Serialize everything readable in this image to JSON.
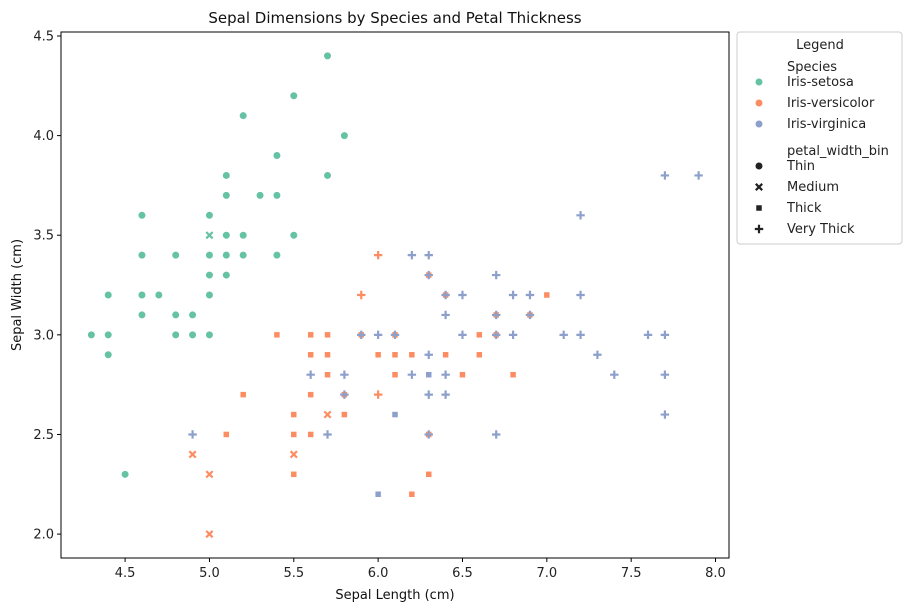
{
  "chart_data": {
    "type": "scatter",
    "title": "Sepal Dimensions by Species and Petal Thickness",
    "xlabel": "Sepal Length (cm)",
    "ylabel": "Sepal Width (cm)",
    "xlim": [
      4.12,
      8.08
    ],
    "ylim": [
      1.88,
      4.52
    ],
    "x_ticks": [
      4.5,
      5.0,
      5.5,
      6.0,
      6.5,
      7.0,
      7.5,
      8.0
    ],
    "x_tick_labels": [
      "4.5",
      "5.0",
      "5.5",
      "6.0",
      "6.5",
      "7.0",
      "7.5",
      "8.0"
    ],
    "y_ticks": [
      2.0,
      2.5,
      3.0,
      3.5,
      4.0,
      4.5
    ],
    "y_tick_labels": [
      "2.0",
      "2.5",
      "3.0",
      "3.5",
      "4.0",
      "4.5"
    ],
    "grid": false,
    "legend": {
      "title": "Legend",
      "placement": "outside-upper-right",
      "hue_title": "Species",
      "style_title": "petal_width_bin",
      "species": [
        {
          "name": "Iris-setosa",
          "color": "#66c2a5"
        },
        {
          "name": "Iris-versicolor",
          "color": "#fc8d62"
        },
        {
          "name": "Iris-virginica",
          "color": "#8da0cb"
        }
      ],
      "markers": [
        {
          "name": "Thin",
          "marker": "circle"
        },
        {
          "name": "Medium",
          "marker": "x"
        },
        {
          "name": "Thick",
          "marker": "square"
        },
        {
          "name": "Very Thick",
          "marker": "plus"
        }
      ]
    },
    "series": [
      {
        "name": "Iris-setosa",
        "color": "#66c2a5",
        "points": [
          [
            4.3,
            3.0,
            "Thin"
          ],
          [
            4.4,
            2.9,
            "Thin"
          ],
          [
            4.4,
            3.0,
            "Thin"
          ],
          [
            4.4,
            3.2,
            "Thin"
          ],
          [
            4.5,
            2.3,
            "Thin"
          ],
          [
            4.6,
            3.1,
            "Thin"
          ],
          [
            4.6,
            3.2,
            "Thin"
          ],
          [
            4.6,
            3.4,
            "Thin"
          ],
          [
            4.6,
            3.6,
            "Thin"
          ],
          [
            4.7,
            3.2,
            "Thin"
          ],
          [
            4.8,
            3.0,
            "Thin"
          ],
          [
            4.8,
            3.1,
            "Thin"
          ],
          [
            4.8,
            3.4,
            "Thin"
          ],
          [
            4.9,
            3.0,
            "Thin"
          ],
          [
            4.9,
            3.1,
            "Thin"
          ],
          [
            5.0,
            3.0,
            "Thin"
          ],
          [
            5.0,
            3.2,
            "Thin"
          ],
          [
            5.0,
            3.3,
            "Thin"
          ],
          [
            5.0,
            3.4,
            "Thin"
          ],
          [
            5.0,
            3.5,
            "Medium"
          ],
          [
            5.0,
            3.6,
            "Thin"
          ],
          [
            5.1,
            3.3,
            "Thin"
          ],
          [
            5.1,
            3.4,
            "Thin"
          ],
          [
            5.1,
            3.5,
            "Thin"
          ],
          [
            5.1,
            3.7,
            "Thin"
          ],
          [
            5.1,
            3.8,
            "Thin"
          ],
          [
            5.2,
            3.4,
            "Thin"
          ],
          [
            5.2,
            3.5,
            "Thin"
          ],
          [
            5.2,
            4.1,
            "Thin"
          ],
          [
            5.3,
            3.7,
            "Thin"
          ],
          [
            5.4,
            3.4,
            "Thin"
          ],
          [
            5.4,
            3.7,
            "Thin"
          ],
          [
            5.4,
            3.9,
            "Thin"
          ],
          [
            5.5,
            3.5,
            "Thin"
          ],
          [
            5.5,
            4.2,
            "Thin"
          ],
          [
            5.7,
            3.8,
            "Thin"
          ],
          [
            5.7,
            4.4,
            "Thin"
          ],
          [
            5.8,
            4.0,
            "Thin"
          ]
        ]
      },
      {
        "name": "Iris-versicolor",
        "color": "#fc8d62",
        "points": [
          [
            4.9,
            2.4,
            "Medium"
          ],
          [
            5.0,
            2.0,
            "Medium"
          ],
          [
            5.0,
            2.3,
            "Medium"
          ],
          [
            5.1,
            2.5,
            "Thick"
          ],
          [
            5.2,
            2.7,
            "Thick"
          ],
          [
            5.4,
            3.0,
            "Thick"
          ],
          [
            5.5,
            2.3,
            "Thick"
          ],
          [
            5.5,
            2.4,
            "Medium"
          ],
          [
            5.5,
            2.5,
            "Thick"
          ],
          [
            5.5,
            2.6,
            "Thick"
          ],
          [
            5.6,
            2.5,
            "Thick"
          ],
          [
            5.6,
            2.7,
            "Thick"
          ],
          [
            5.6,
            2.9,
            "Thick"
          ],
          [
            5.6,
            3.0,
            "Thick"
          ],
          [
            5.7,
            2.6,
            "Medium"
          ],
          [
            5.7,
            2.8,
            "Thick"
          ],
          [
            5.7,
            2.9,
            "Thick"
          ],
          [
            5.7,
            3.0,
            "Thick"
          ],
          [
            5.8,
            2.6,
            "Thick"
          ],
          [
            5.8,
            2.7,
            "Thick"
          ],
          [
            5.9,
            3.0,
            "Thick"
          ],
          [
            5.9,
            3.2,
            "Very Thick"
          ],
          [
            6.0,
            2.7,
            "Very Thick"
          ],
          [
            6.0,
            2.9,
            "Thick"
          ],
          [
            6.0,
            3.4,
            "Very Thick"
          ],
          [
            6.1,
            2.8,
            "Thick"
          ],
          [
            6.1,
            2.9,
            "Thick"
          ],
          [
            6.1,
            3.0,
            "Thick"
          ],
          [
            6.2,
            2.2,
            "Thick"
          ],
          [
            6.2,
            2.9,
            "Thick"
          ],
          [
            6.3,
            2.3,
            "Thick"
          ],
          [
            6.3,
            2.5,
            "Thick"
          ],
          [
            6.3,
            3.3,
            "Thick"
          ],
          [
            6.4,
            2.9,
            "Thick"
          ],
          [
            6.4,
            3.2,
            "Thick"
          ],
          [
            6.5,
            2.8,
            "Thick"
          ],
          [
            6.6,
            2.9,
            "Thick"
          ],
          [
            6.6,
            3.0,
            "Thick"
          ],
          [
            6.7,
            3.0,
            "Thick"
          ],
          [
            6.7,
            3.1,
            "Thick"
          ],
          [
            6.8,
            2.8,
            "Thick"
          ],
          [
            6.9,
            3.1,
            "Thick"
          ],
          [
            7.0,
            3.2,
            "Thick"
          ]
        ]
      },
      {
        "name": "Iris-virginica",
        "color": "#8da0cb",
        "points": [
          [
            4.9,
            2.5,
            "Very Thick"
          ],
          [
            5.6,
            2.8,
            "Very Thick"
          ],
          [
            5.7,
            2.5,
            "Very Thick"
          ],
          [
            5.8,
            2.7,
            "Very Thick"
          ],
          [
            5.8,
            2.8,
            "Very Thick"
          ],
          [
            5.9,
            3.0,
            "Very Thick"
          ],
          [
            6.0,
            2.2,
            "Thick"
          ],
          [
            6.0,
            3.0,
            "Very Thick"
          ],
          [
            6.1,
            2.6,
            "Thick"
          ],
          [
            6.1,
            3.0,
            "Very Thick"
          ],
          [
            6.2,
            2.8,
            "Very Thick"
          ],
          [
            6.2,
            3.4,
            "Very Thick"
          ],
          [
            6.3,
            2.5,
            "Very Thick"
          ],
          [
            6.3,
            2.7,
            "Very Thick"
          ],
          [
            6.3,
            2.8,
            "Thick"
          ],
          [
            6.3,
            2.9,
            "Very Thick"
          ],
          [
            6.3,
            3.3,
            "Very Thick"
          ],
          [
            6.3,
            3.4,
            "Very Thick"
          ],
          [
            6.4,
            2.7,
            "Very Thick"
          ],
          [
            6.4,
            2.8,
            "Very Thick"
          ],
          [
            6.4,
            3.1,
            "Very Thick"
          ],
          [
            6.4,
            3.2,
            "Very Thick"
          ],
          [
            6.5,
            3.0,
            "Very Thick"
          ],
          [
            6.5,
            3.2,
            "Very Thick"
          ],
          [
            6.7,
            2.5,
            "Very Thick"
          ],
          [
            6.7,
            3.0,
            "Very Thick"
          ],
          [
            6.7,
            3.1,
            "Very Thick"
          ],
          [
            6.7,
            3.3,
            "Very Thick"
          ],
          [
            6.8,
            3.0,
            "Very Thick"
          ],
          [
            6.8,
            3.2,
            "Very Thick"
          ],
          [
            6.9,
            3.1,
            "Very Thick"
          ],
          [
            6.9,
            3.2,
            "Very Thick"
          ],
          [
            7.1,
            3.0,
            "Very Thick"
          ],
          [
            7.2,
            3.0,
            "Very Thick"
          ],
          [
            7.2,
            3.2,
            "Very Thick"
          ],
          [
            7.2,
            3.6,
            "Very Thick"
          ],
          [
            7.3,
            2.9,
            "Very Thick"
          ],
          [
            7.4,
            2.8,
            "Very Thick"
          ],
          [
            7.6,
            3.0,
            "Very Thick"
          ],
          [
            7.7,
            2.6,
            "Very Thick"
          ],
          [
            7.7,
            2.8,
            "Very Thick"
          ],
          [
            7.7,
            3.0,
            "Very Thick"
          ],
          [
            7.7,
            3.8,
            "Very Thick"
          ],
          [
            7.9,
            3.8,
            "Very Thick"
          ]
        ]
      }
    ]
  }
}
